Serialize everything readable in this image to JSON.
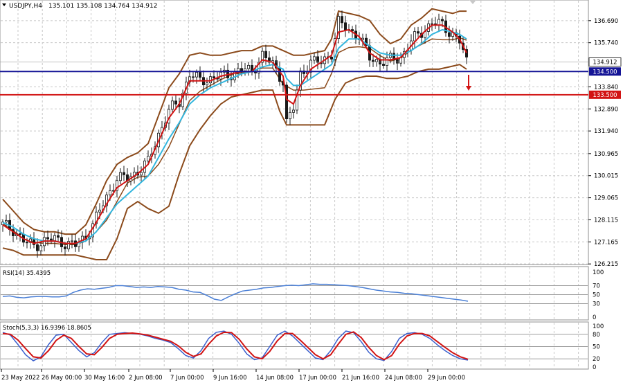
{
  "header": {
    "symbol": "USDJPY,H4",
    "ohlc": "135.101 135.108 134.764 134.912"
  },
  "colors": {
    "bull": "#2b2b2b",
    "bear": "#1a1a1a",
    "bollinger": "#8b4a1b",
    "ema_fast": "#d21414",
    "ema_slow": "#33b6de",
    "support": "#141496",
    "resistance": "#d21414",
    "rsi": "#4a7fd6",
    "stoch_main": "#3a5fcd",
    "stoch_signal": "#d21414",
    "grid": "#c8c8c8"
  },
  "chart_data": [
    {
      "type": "candlestick",
      "panel": "main",
      "ylim": [
        126.25,
        137.4
      ],
      "y_ticks": [
        "136.690",
        "135.740",
        "134.912",
        "134.500",
        "133.840",
        "133.500",
        "132.890",
        "131.940",
        "130.965",
        "130.015",
        "129.065",
        "128.115",
        "127.165",
        "126.215"
      ],
      "current_price": 134.912,
      "levels": [
        {
          "value": 134.5,
          "label": "134.500",
          "color": "#141496"
        },
        {
          "value": 133.5,
          "label": "133.500",
          "color": "#d21414"
        }
      ],
      "x_ticks": [
        "23 May 2022",
        "26 May 00:00",
        "30 May 16:00",
        "2 Jun 08:00",
        "7 Jun 00:00",
        "9 Jun 16:00",
        "14 Jun 08:00",
        "17 Jun 00:00",
        "21 Jun 16:00",
        "24 Jun 08:00",
        "29 Jun 00:00"
      ],
      "close_path": [
        [
          0,
          127.9
        ],
        [
          3,
          127.7
        ],
        [
          6,
          127.2
        ],
        [
          9,
          127.0
        ],
        [
          12,
          127.2
        ],
        [
          15,
          127.3
        ],
        [
          18,
          127.1
        ],
        [
          21,
          127.0
        ],
        [
          24,
          127.4
        ],
        [
          27,
          128.2
        ],
        [
          30,
          129.1
        ],
        [
          33,
          129.9
        ],
        [
          36,
          129.9
        ],
        [
          39,
          130.2
        ],
        [
          42,
          130.6
        ],
        [
          45,
          131.8
        ],
        [
          48,
          132.8
        ],
        [
          51,
          133.2
        ],
        [
          54,
          134.4
        ],
        [
          57,
          134.1
        ],
        [
          60,
          134.2
        ],
        [
          63,
          134.3
        ],
        [
          66,
          134.4
        ],
        [
          69,
          134.6
        ],
        [
          72,
          134.5
        ],
        [
          75,
          135.2
        ],
        [
          78,
          134.8
        ],
        [
          81,
          134.1
        ],
        [
          82,
          132.3
        ],
        [
          84,
          132.9
        ],
        [
          86,
          134.4
        ],
        [
          89,
          134.9
        ],
        [
          92,
          134.9
        ],
        [
          95,
          135.3
        ],
        [
          97,
          136.6
        ],
        [
          100,
          136.3
        ],
        [
          103,
          136.0
        ],
        [
          106,
          135.1
        ],
        [
          109,
          134.9
        ],
        [
          112,
          135.0
        ],
        [
          115,
          135.1
        ],
        [
          118,
          135.8
        ],
        [
          121,
          136.2
        ],
        [
          124,
          136.6
        ],
        [
          127,
          136.5
        ],
        [
          130,
          136.1
        ],
        [
          132,
          135.8
        ],
        [
          134,
          134.9
        ]
      ],
      "ema_fast": [
        [
          0,
          127.9
        ],
        [
          3,
          127.6
        ],
        [
          6,
          127.3
        ],
        [
          9,
          127.1
        ],
        [
          12,
          127.2
        ],
        [
          15,
          127.2
        ],
        [
          18,
          127.1
        ],
        [
          21,
          127.1
        ],
        [
          24,
          127.3
        ],
        [
          27,
          128.0
        ],
        [
          30,
          128.8
        ],
        [
          33,
          129.5
        ],
        [
          36,
          129.8
        ],
        [
          39,
          130.1
        ],
        [
          42,
          130.5
        ],
        [
          45,
          131.5
        ],
        [
          48,
          132.5
        ],
        [
          51,
          133.1
        ],
        [
          54,
          134.1
        ],
        [
          57,
          134.1
        ],
        [
          60,
          134.1
        ],
        [
          63,
          134.3
        ],
        [
          66,
          134.4
        ],
        [
          69,
          134.5
        ],
        [
          72,
          134.5
        ],
        [
          75,
          135.0
        ],
        [
          78,
          134.9
        ],
        [
          81,
          134.3
        ],
        [
          82,
          133.3
        ],
        [
          84,
          133.1
        ],
        [
          86,
          133.9
        ],
        [
          89,
          134.6
        ],
        [
          92,
          134.9
        ],
        [
          95,
          135.2
        ],
        [
          97,
          136.2
        ],
        [
          100,
          136.3
        ],
        [
          103,
          136.0
        ],
        [
          106,
          135.3
        ],
        [
          109,
          135.0
        ],
        [
          112,
          135.0
        ],
        [
          115,
          135.1
        ],
        [
          118,
          135.6
        ],
        [
          121,
          136.1
        ],
        [
          124,
          136.5
        ],
        [
          127,
          136.5
        ],
        [
          130,
          136.2
        ],
        [
          132,
          135.9
        ],
        [
          134,
          135.3
        ]
      ],
      "ema_slow": [
        [
          0,
          128.0
        ],
        [
          3,
          127.8
        ],
        [
          6,
          127.5
        ],
        [
          9,
          127.3
        ],
        [
          12,
          127.2
        ],
        [
          15,
          127.2
        ],
        [
          18,
          127.1
        ],
        [
          21,
          127.1
        ],
        [
          24,
          127.2
        ],
        [
          27,
          127.6
        ],
        [
          30,
          128.2
        ],
        [
          33,
          128.8
        ],
        [
          36,
          129.2
        ],
        [
          39,
          129.6
        ],
        [
          42,
          130.0
        ],
        [
          45,
          130.8
        ],
        [
          48,
          131.6
        ],
        [
          51,
          132.3
        ],
        [
          54,
          133.1
        ],
        [
          57,
          133.5
        ],
        [
          60,
          133.8
        ],
        [
          63,
          134.0
        ],
        [
          66,
          134.2
        ],
        [
          69,
          134.4
        ],
        [
          72,
          134.5
        ],
        [
          75,
          134.7
        ],
        [
          78,
          134.8
        ],
        [
          81,
          134.6
        ],
        [
          82,
          134.2
        ],
        [
          84,
          133.9
        ],
        [
          86,
          133.9
        ],
        [
          89,
          134.2
        ],
        [
          92,
          134.5
        ],
        [
          95,
          134.8
        ],
        [
          97,
          135.5
        ],
        [
          100,
          135.9
        ],
        [
          103,
          135.9
        ],
        [
          106,
          135.6
        ],
        [
          109,
          135.3
        ],
        [
          112,
          135.2
        ],
        [
          115,
          135.2
        ],
        [
          118,
          135.4
        ],
        [
          121,
          135.7
        ],
        [
          124,
          136.1
        ],
        [
          127,
          136.3
        ],
        [
          130,
          136.2
        ],
        [
          132,
          136.1
        ],
        [
          134,
          135.9
        ]
      ],
      "bb_upper": [
        [
          0,
          129.0
        ],
        [
          3,
          128.5
        ],
        [
          6,
          128.0
        ],
        [
          9,
          127.7
        ],
        [
          12,
          127.6
        ],
        [
          15,
          127.6
        ],
        [
          18,
          127.5
        ],
        [
          21,
          127.5
        ],
        [
          24,
          127.9
        ],
        [
          27,
          128.8
        ],
        [
          30,
          129.8
        ],
        [
          33,
          130.5
        ],
        [
          36,
          130.8
        ],
        [
          39,
          131.0
        ],
        [
          42,
          131.4
        ],
        [
          45,
          132.6
        ],
        [
          48,
          133.8
        ],
        [
          51,
          134.4
        ],
        [
          54,
          135.2
        ],
        [
          57,
          135.3
        ],
        [
          60,
          135.2
        ],
        [
          63,
          135.2
        ],
        [
          66,
          135.3
        ],
        [
          69,
          135.4
        ],
        [
          72,
          135.4
        ],
        [
          75,
          135.6
        ],
        [
          78,
          135.6
        ],
        [
          81,
          135.4
        ],
        [
          84,
          135.2
        ],
        [
          87,
          135.2
        ],
        [
          90,
          135.3
        ],
        [
          93,
          135.4
        ],
        [
          95,
          135.9
        ],
        [
          97,
          137.1
        ],
        [
          100,
          137.0
        ],
        [
          103,
          136.9
        ],
        [
          106,
          136.7
        ],
        [
          109,
          136.1
        ],
        [
          112,
          135.7
        ],
        [
          115,
          135.9
        ],
        [
          118,
          136.5
        ],
        [
          121,
          136.8
        ],
        [
          124,
          137.2
        ],
        [
          127,
          137.1
        ],
        [
          130,
          137.0
        ],
        [
          132,
          137.1
        ],
        [
          134,
          137.1
        ]
      ],
      "bb_lower": [
        [
          0,
          126.9
        ],
        [
          3,
          126.8
        ],
        [
          6,
          126.6
        ],
        [
          9,
          126.6
        ],
        [
          12,
          126.6
        ],
        [
          15,
          126.6
        ],
        [
          18,
          126.6
        ],
        [
          21,
          126.6
        ],
        [
          24,
          126.5
        ],
        [
          27,
          126.4
        ],
        [
          30,
          126.4
        ],
        [
          33,
          127.3
        ],
        [
          36,
          128.6
        ],
        [
          39,
          128.9
        ],
        [
          42,
          128.6
        ],
        [
          45,
          128.4
        ],
        [
          48,
          128.7
        ],
        [
          51,
          130.1
        ],
        [
          54,
          131.3
        ],
        [
          57,
          132.0
        ],
        [
          60,
          132.6
        ],
        [
          63,
          133.1
        ],
        [
          66,
          133.4
        ],
        [
          69,
          133.5
        ],
        [
          72,
          133.6
        ],
        [
          75,
          133.7
        ],
        [
          78,
          133.7
        ],
        [
          80,
          132.8
        ],
        [
          82,
          132.2
        ],
        [
          84,
          132.2
        ],
        [
          87,
          132.2
        ],
        [
          90,
          132.2
        ],
        [
          93,
          132.2
        ],
        [
          96,
          133.3
        ],
        [
          99,
          134.0
        ],
        [
          102,
          134.2
        ],
        [
          105,
          134.3
        ],
        [
          108,
          134.3
        ],
        [
          111,
          134.2
        ],
        [
          114,
          134.2
        ],
        [
          117,
          134.3
        ],
        [
          120,
          134.5
        ],
        [
          123,
          134.6
        ],
        [
          126,
          134.6
        ],
        [
          129,
          134.7
        ],
        [
          132,
          134.8
        ],
        [
          134,
          134.6
        ]
      ]
    },
    {
      "type": "line",
      "panel": "rsi",
      "title": "RSI(14) 35.4395",
      "ylim": [
        0,
        100
      ],
      "y_ticks": [
        100,
        70,
        50,
        30,
        0
      ],
      "series": [
        {
          "name": "RSI(14)",
          "values": [
            46,
            47,
            44,
            43,
            45,
            46,
            46,
            45,
            45,
            47,
            55,
            60,
            63,
            62,
            64,
            66,
            70,
            70,
            68,
            66,
            67,
            66,
            68,
            67,
            66,
            62,
            60,
            56,
            55,
            48,
            40,
            37,
            45,
            52,
            58,
            60,
            62,
            65,
            66,
            68,
            70,
            71,
            70,
            72,
            74,
            73,
            73,
            72,
            71,
            70,
            68,
            66,
            63,
            60,
            58,
            56,
            55,
            53,
            52,
            50,
            48,
            46,
            44,
            42,
            40,
            38,
            35.4
          ]
        }
      ]
    },
    {
      "type": "line",
      "panel": "stochastic",
      "title": "Stoch(5,3,3) 16.9396 18.8605",
      "ylim": [
        0,
        100
      ],
      "y_ticks": [
        100,
        80,
        50,
        20,
        0
      ],
      "series": [
        {
          "name": "%K",
          "values": [
            85,
            78,
            55,
            30,
            15,
            25,
            55,
            78,
            80,
            60,
            40,
            25,
            35,
            60,
            80,
            82,
            84,
            82,
            80,
            76,
            70,
            66,
            60,
            45,
            28,
            22,
            40,
            70,
            85,
            88,
            80,
            58,
            32,
            18,
            22,
            50,
            78,
            88,
            76,
            58,
            40,
            22,
            18,
            40,
            70,
            88,
            84,
            62,
            36,
            20,
            16,
            38,
            70,
            82,
            84,
            80,
            70,
            54,
            40,
            28,
            20,
            16.9
          ]
        },
        {
          "name": "%D",
          "values": [
            82,
            80,
            66,
            45,
            25,
            22,
            40,
            65,
            78,
            70,
            50,
            32,
            30,
            48,
            70,
            80,
            82,
            83,
            81,
            78,
            73,
            68,
            63,
            52,
            36,
            26,
            32,
            56,
            76,
            85,
            84,
            68,
            44,
            25,
            20,
            38,
            64,
            82,
            82,
            66,
            48,
            30,
            20,
            30,
            56,
            80,
            86,
            72,
            48,
            28,
            18,
            28,
            56,
            76,
            82,
            82,
            76,
            62,
            48,
            35,
            25,
            18.9
          ]
        }
      ]
    }
  ]
}
